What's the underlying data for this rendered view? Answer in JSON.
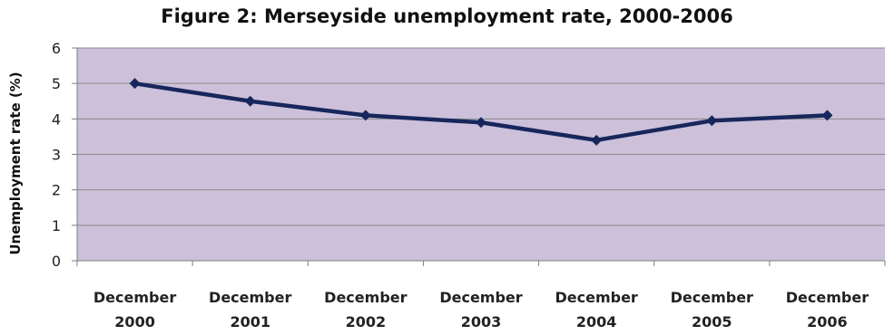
{
  "chart_data": {
    "type": "line",
    "title": "Figure 2: Merseyside unemployment rate, 2000-2006",
    "xlabel": "",
    "ylabel": "Unemployment rate (%)",
    "categories": [
      [
        "December",
        "2000"
      ],
      [
        "December",
        "2001"
      ],
      [
        "December",
        "2002"
      ],
      [
        "December",
        "2003"
      ],
      [
        "December",
        "2004"
      ],
      [
        "December",
        "2005"
      ],
      [
        "December",
        "2006"
      ]
    ],
    "series": [
      {
        "values": [
          5.0,
          4.5,
          4.1,
          3.9,
          3.4,
          3.95,
          4.1
        ]
      }
    ],
    "ylim": [
      0,
      6
    ],
    "yticks": [
      0,
      1,
      2,
      3,
      4,
      5,
      6
    ],
    "grid": true,
    "legend": "none",
    "colors": {
      "plot_background": "#ccc0da",
      "line": "#17275c",
      "gridline": "#8a8a8a"
    }
  }
}
